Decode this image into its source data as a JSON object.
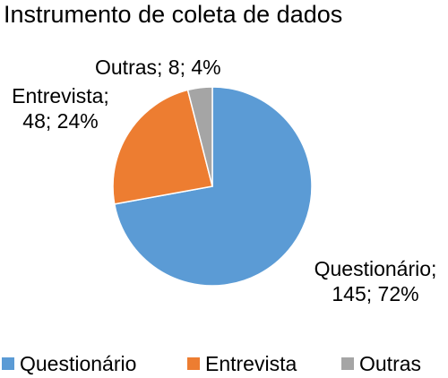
{
  "chart_data": {
    "type": "pie",
    "title": "Instrumento de coleta de dados",
    "categories": [
      "Questionário",
      "Entrevista",
      "Outras"
    ],
    "values": [
      145,
      48,
      8
    ],
    "percent_labels": [
      "72%",
      "24%",
      "4%"
    ],
    "slice_labels": [
      "Questionário;\n145; 72%",
      "Entrevista;\n48; 24%",
      "Outras; 8; 4%"
    ],
    "colors": [
      "#5B9BD5",
      "#ED7D31",
      "#A5A5A5"
    ],
    "legend_position": "bottom"
  }
}
